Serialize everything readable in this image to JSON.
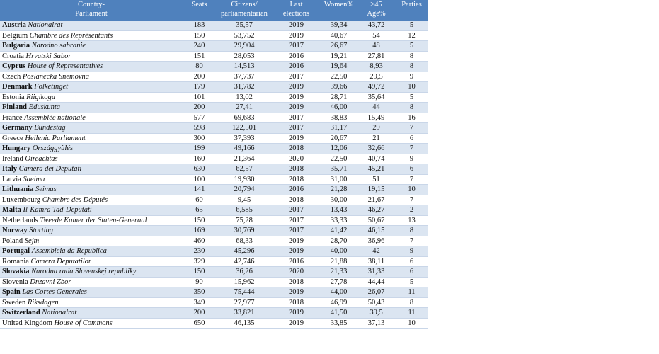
{
  "table": {
    "header": [
      [
        "Country-",
        "Parliament"
      ],
      [
        "Seats"
      ],
      [
        "Citizens/",
        "parliamentarian"
      ],
      [
        "Last",
        "elections"
      ],
      [
        "Women%"
      ],
      [
        ">45",
        "Age%"
      ],
      [
        "Parties"
      ]
    ],
    "rows": [
      [
        "Austria",
        "Nationalrat",
        183,
        "35,57",
        2019,
        "39,34",
        "43,72",
        5
      ],
      [
        "Belgium",
        "Chambre des Représentants",
        150,
        "53,752",
        2019,
        "40,67",
        "54",
        12
      ],
      [
        "Bulgaria",
        "Narodno sabranie",
        240,
        "29,904",
        2017,
        "26,67",
        "48",
        5
      ],
      [
        "Croatia",
        "Hrvatski Sabor",
        151,
        "28,053",
        2016,
        "19,21",
        "27,81",
        8
      ],
      [
        "Cyprus",
        "House of Representatives",
        80,
        "14,513",
        2016,
        "19,64",
        "8,93",
        8
      ],
      [
        "Czech",
        "Poslanecka Snemovna",
        200,
        "37,737",
        2017,
        "22,50",
        "29,5",
        9
      ],
      [
        "Denmark",
        "Folketinget",
        179,
        "31,782",
        2019,
        "39,66",
        "49,72",
        10
      ],
      [
        "Estonia",
        "Riigikogu",
        101,
        "13,02",
        2019,
        "28,71",
        "35,64",
        5
      ],
      [
        "Finland",
        "Eduskunta",
        200,
        "27,41",
        2019,
        "46,00",
        "44",
        8
      ],
      [
        "France",
        "Assemblée nationale",
        577,
        "69,683",
        2017,
        "38,83",
        "15,49",
        16
      ],
      [
        "Germany",
        "Bundestag",
        598,
        "122,501",
        2017,
        "31,17",
        "29",
        7
      ],
      [
        "Greece",
        "Hellenic Parliament",
        300,
        "37,393",
        2019,
        "20,67",
        "21",
        6
      ],
      [
        "Hungary",
        "Országgyülés",
        199,
        "49,166",
        2018,
        "12,06",
        "32,66",
        7
      ],
      [
        "Ireland",
        "Oireachtas",
        160,
        "21,364",
        2020,
        "22,50",
        "40,74",
        9
      ],
      [
        "Italy",
        "Camera dei Deputati",
        630,
        "62,57",
        2018,
        "35,71",
        "45,21",
        6
      ],
      [
        "Latvia",
        "Saeima",
        100,
        "19,930",
        2018,
        "31,00",
        "51",
        7
      ],
      [
        "Lithuania",
        "Seimas",
        141,
        "20,794",
        2016,
        "21,28",
        "19,15",
        10
      ],
      [
        "Luxembourg",
        "Chambre des Députés",
        60,
        "9,45",
        2018,
        "30,00",
        "21,67",
        7
      ],
      [
        "Malta",
        "Il-Kamra Tad-Deputati",
        65,
        "6,585",
        2017,
        "13,43",
        "46,27",
        2
      ],
      [
        "Netherlands",
        "Tweede Kamer der Staten-Generaal",
        150,
        "75,28",
        2017,
        "33,33",
        "50,67",
        13
      ],
      [
        "Norway",
        "Storting",
        169,
        "30,769",
        2017,
        "41,42",
        "46,15",
        8
      ],
      [
        "Poland",
        "Sejm",
        460,
        "68,33",
        2019,
        "28,70",
        "36,96",
        7
      ],
      [
        "Portugal",
        "Assembleia da Republica",
        230,
        "45,296",
        2019,
        "40,00",
        "42",
        9
      ],
      [
        "Romania",
        "Camera Deputatilor",
        329,
        "42,746",
        2016,
        "21,88",
        "38,11",
        6
      ],
      [
        "Slovakia",
        "Narodna rada Slovenskej republiky",
        150,
        "36,26",
        2020,
        "21,33",
        "31,33",
        6
      ],
      [
        "Slovenia",
        "Dnzavni Zbor",
        90,
        "15,962",
        2018,
        "27,78",
        "44,44",
        5
      ],
      [
        "Spain",
        "Las Cortes Generales",
        350,
        "75,444",
        2019,
        "44,00",
        "26,07",
        11
      ],
      [
        "Sweden",
        "Riksdagen",
        349,
        "27,977",
        2018,
        "46,99",
        "50,43",
        8
      ],
      [
        "Switzerland",
        "Nationalrat",
        200,
        "33,821",
        2019,
        "41,50",
        "39,5",
        11
      ],
      [
        "United Kingdom",
        "House of Commons",
        650,
        "46,135",
        2019,
        "33,85",
        "37,13",
        10
      ]
    ]
  }
}
